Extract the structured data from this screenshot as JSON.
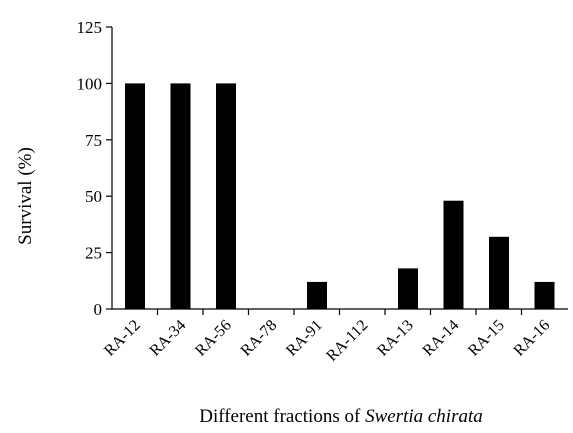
{
  "chart_data": {
    "type": "bar",
    "categories": [
      "RA-12",
      "RA-34",
      "RA-56",
      "RA-78",
      "RA-91",
      "RA-112",
      "RA-13",
      "RA-14",
      "RA-15",
      "RA-16"
    ],
    "values": [
      100,
      100,
      100,
      0,
      12,
      0,
      18,
      48,
      32,
      12
    ],
    "ylabel": "Survival   (%)",
    "xlabel_prefix": "Different fractions of ",
    "xlabel_italic": "Swertia chirata",
    "ylim": [
      0,
      125
    ],
    "yticks": [
      0,
      25,
      50,
      75,
      100,
      125
    ],
    "grid": false,
    "legend": "none",
    "bar_color": "#000000"
  }
}
